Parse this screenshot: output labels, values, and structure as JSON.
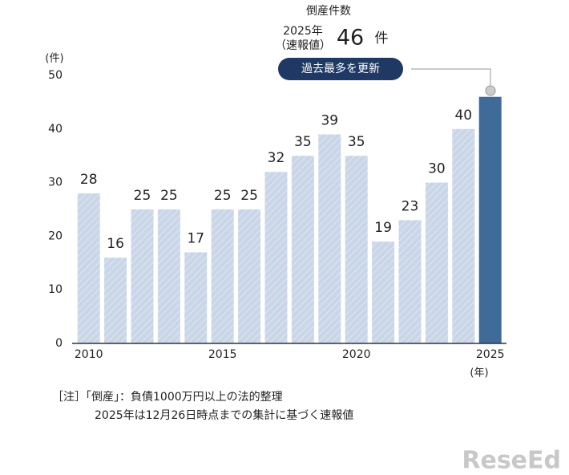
{
  "chart_data": {
    "type": "bar",
    "title": "倒産件数",
    "callout_label": [
      "2025年",
      "（速報値）"
    ],
    "callout_unit": "件",
    "callout_badge": "過去最多を更新",
    "y_label": "(件)",
    "x_label": "(年)",
    "categories": [
      "2010",
      null,
      null,
      null,
      null,
      "2015",
      null,
      null,
      null,
      null,
      "2020",
      null,
      null,
      null,
      null,
      "2025"
    ],
    "values": [
      28,
      16,
      25,
      25,
      17,
      25,
      25,
      32,
      35,
      39,
      35,
      19,
      23,
      30,
      40,
      46
    ],
    "colors": [
      "#c9d6e8",
      "#c9d6e8",
      "#c9d6e8",
      "#c9d6e8",
      "#c9d6e8",
      "#c9d6e8",
      "#c9d6e8",
      "#c9d6e8",
      "#c9d6e8",
      "#c9d6e8",
      "#c9d6e8",
      "#c9d6e8",
      "#c9d6e8",
      "#c9d6e8",
      "#c9d6e8",
      "#3f6b99"
    ],
    "ylim": [
      0,
      50
    ],
    "yticks": [
      0,
      10,
      20,
      30,
      40,
      50
    ],
    "notes": [
      "［注］「倒産」：負債1000万円以上の法的整理",
      "2025年は12月26日時点までの集計に基づく速報値"
    ],
    "watermark": "ReseEd"
  }
}
